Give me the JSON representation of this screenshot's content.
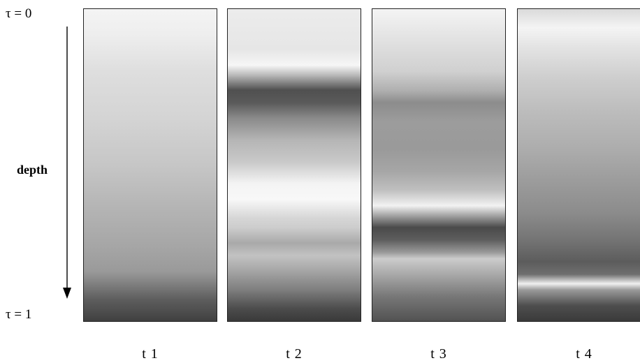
{
  "axis": {
    "top_label": "τ = 0",
    "bottom_label": "τ = 1",
    "depth_label": "depth"
  },
  "panels": [
    {
      "label": "t 1"
    },
    {
      "label": "t 2"
    },
    {
      "label": "t 3"
    },
    {
      "label": "t 4"
    }
  ]
}
